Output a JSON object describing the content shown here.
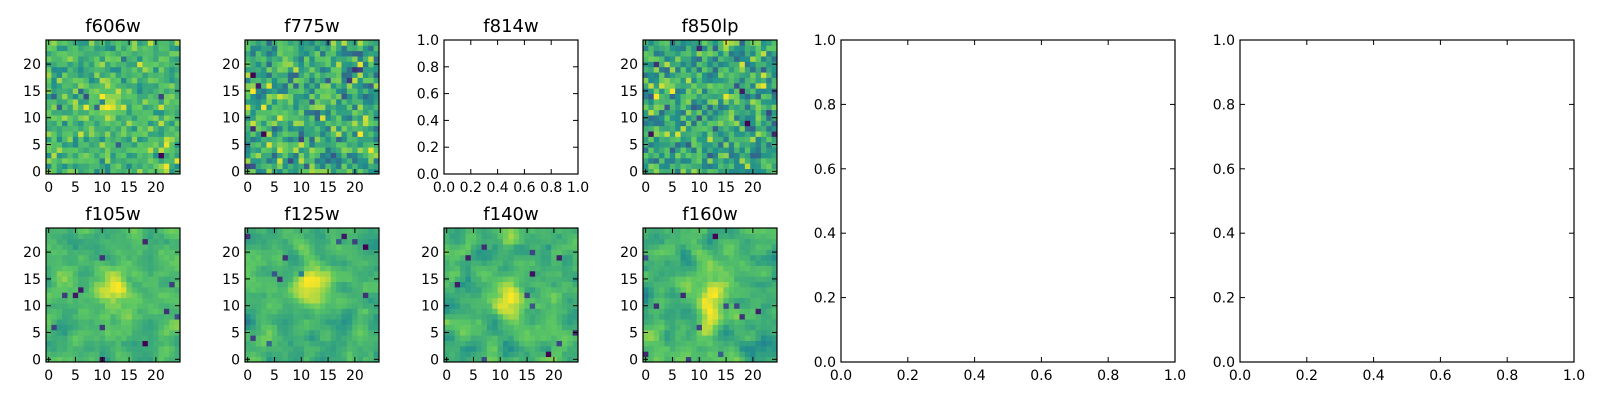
{
  "colors": {
    "background": "#ffffff",
    "axes": "#000000",
    "colormap": "viridis",
    "colormap_stops": [
      "#440154",
      "#3b528b",
      "#21918c",
      "#5ec962",
      "#fde725"
    ]
  },
  "chart_data": [
    {
      "type": "heatmap",
      "title": "f606w",
      "xlim": [
        0,
        24
      ],
      "ylim": [
        0,
        24
      ],
      "xticks": [
        "0",
        "5",
        "10",
        "15",
        "20"
      ],
      "yticks": [
        "0",
        "5",
        "10",
        "15",
        "20"
      ],
      "grid_size": [
        25,
        25
      ],
      "colormap": "viridis",
      "values": "25x25 noise image, bright source near x≈11, y≈13"
    },
    {
      "type": "heatmap",
      "title": "f775w",
      "xlim": [
        0,
        24
      ],
      "ylim": [
        0,
        24
      ],
      "xticks": [
        "0",
        "5",
        "10",
        "15",
        "20"
      ],
      "yticks": [
        "0",
        "5",
        "10",
        "15",
        "20"
      ],
      "grid_size": [
        25,
        25
      ],
      "colormap": "viridis",
      "values": "25x25 noise image"
    },
    {
      "type": "scatter",
      "title": "f814w",
      "empty": true,
      "xlim": [
        0,
        1
      ],
      "ylim": [
        0,
        1
      ],
      "xticks": [
        "0.0",
        "0.2",
        "0.4",
        "0.6",
        "0.8",
        "1.0"
      ],
      "yticks": [
        "0.0",
        "0.2",
        "0.4",
        "0.6",
        "0.8",
        "1.0"
      ]
    },
    {
      "type": "heatmap",
      "title": "f850lp",
      "xlim": [
        0,
        24
      ],
      "ylim": [
        0,
        24
      ],
      "xticks": [
        "0",
        "5",
        "10",
        "15",
        "20"
      ],
      "yticks": [
        "0",
        "5",
        "10",
        "15",
        "20"
      ],
      "grid_size": [
        25,
        25
      ],
      "colormap": "viridis",
      "values": "25x25 noise image"
    },
    {
      "type": "heatmap",
      "title": "f105w",
      "xlim": [
        0,
        24
      ],
      "ylim": [
        0,
        24
      ],
      "xticks": [
        "0",
        "5",
        "10",
        "15",
        "20"
      ],
      "yticks": [
        "0",
        "5",
        "10",
        "15",
        "20"
      ],
      "grid_size": [
        25,
        25
      ],
      "colormap": "viridis",
      "values": "25x25 smoothed noise image, bright source near x≈12, y≈13"
    },
    {
      "type": "heatmap",
      "title": "f125w",
      "xlim": [
        0,
        24
      ],
      "ylim": [
        0,
        24
      ],
      "xticks": [
        "0",
        "5",
        "10",
        "15",
        "20"
      ],
      "yticks": [
        "0",
        "5",
        "10",
        "15",
        "20"
      ],
      "grid_size": [
        25,
        25
      ],
      "colormap": "viridis",
      "values": "25x25 smoothed noise image, bright source near x≈12, y≈14"
    },
    {
      "type": "heatmap",
      "title": "f140w",
      "xlim": [
        0,
        24
      ],
      "ylim": [
        0,
        24
      ],
      "xticks": [
        "0",
        "5",
        "10",
        "15",
        "20"
      ],
      "yticks": [
        "0",
        "5",
        "10",
        "15",
        "20"
      ],
      "grid_size": [
        25,
        25
      ],
      "colormap": "viridis",
      "values": "25x25 smoothed noise image, bright source near x≈12, y≈12"
    },
    {
      "type": "heatmap",
      "title": "f160w",
      "xlim": [
        0,
        24
      ],
      "ylim": [
        0,
        24
      ],
      "xticks": [
        "0",
        "5",
        "10",
        "15",
        "20"
      ],
      "yticks": [
        "0",
        "5",
        "10",
        "15",
        "20"
      ],
      "grid_size": [
        25,
        25
      ],
      "colormap": "viridis",
      "values": "25x25 smoothed noise image, bright streak near x≈12, y≈10-15"
    },
    {
      "type": "scatter",
      "title": "",
      "empty": true,
      "xlim": [
        0,
        1
      ],
      "ylim": [
        0,
        1
      ],
      "xticks": [
        "0.0",
        "0.2",
        "0.4",
        "0.6",
        "0.8",
        "1.0"
      ],
      "yticks": [
        "0.0",
        "0.2",
        "0.4",
        "0.6",
        "0.8",
        "1.0"
      ]
    },
    {
      "type": "scatter",
      "title": "",
      "empty": true,
      "xlim": [
        0,
        1
      ],
      "ylim": [
        0,
        1
      ],
      "xticks": [
        "0.0",
        "0.2",
        "0.4",
        "0.6",
        "0.8",
        "1.0"
      ],
      "yticks": [
        "0.0",
        "0.2",
        "0.4",
        "0.6",
        "0.8",
        "1.0"
      ]
    }
  ]
}
